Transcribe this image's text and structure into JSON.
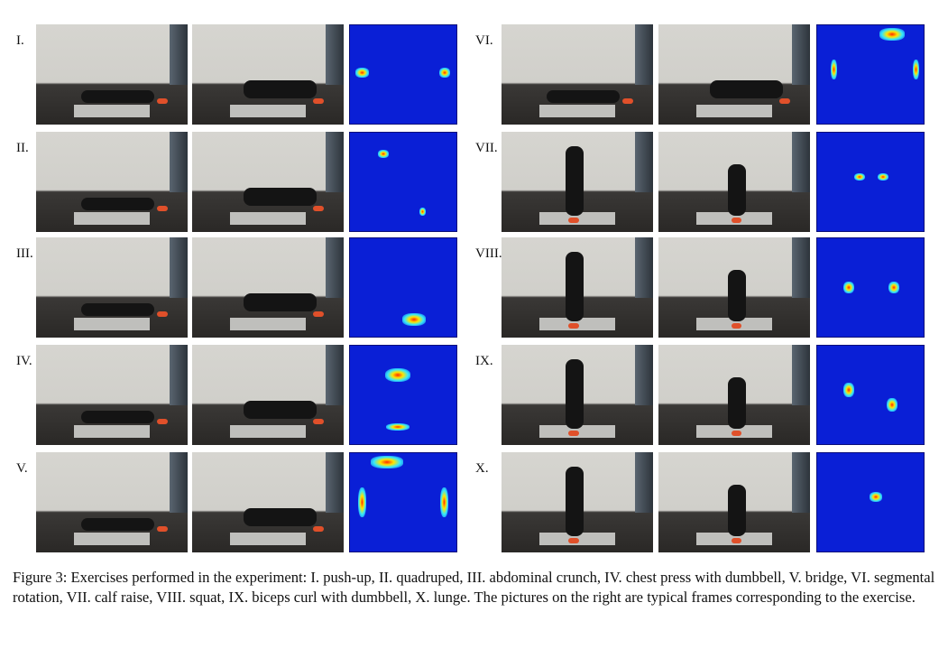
{
  "figure": {
    "rows_left": [
      {
        "numeral": "I."
      },
      {
        "numeral": "II."
      },
      {
        "numeral": "III."
      },
      {
        "numeral": "IV."
      },
      {
        "numeral": "V."
      }
    ],
    "rows_right": [
      {
        "numeral": "VI."
      },
      {
        "numeral": "VII."
      },
      {
        "numeral": "VIII."
      },
      {
        "numeral": "IX."
      },
      {
        "numeral": "X."
      }
    ],
    "caption": "Figure 3: Exercises performed in the experiment: I. push-up, II. quadruped, III. abdominal crunch, IV. chest press with dumbbell, V. bridge, VI. segmental rotation, VII. calf raise, VIII. squat, IX. biceps curl with dumbbell, X. lunge. The pictures on the right are typical frames corresponding to the exercise."
  }
}
